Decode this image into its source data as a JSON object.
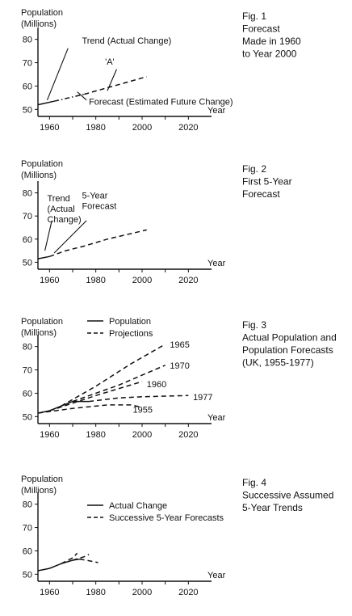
{
  "page": {
    "background": "#ffffff",
    "ink": "#111111"
  },
  "chart_data": [
    {
      "type": "line",
      "caption": "Fig. 1\nForecast\nMade in 1960\nto Year 2000",
      "ylabel": "Population\n(Millions)",
      "xlabel": "Year",
      "x_ticks": [
        1960,
        1980,
        2000,
        2020
      ],
      "y_ticks": [
        50,
        60,
        70,
        80
      ],
      "xlim": [
        1955,
        2030
      ],
      "ylim": [
        47,
        83
      ],
      "legend": [],
      "series": [
        {
          "style": "solid",
          "points": [
            [
              1955,
              52
            ],
            [
              1962,
              53.5
            ]
          ]
        },
        {
          "style": "dashdot",
          "points": [
            [
              1962,
              53.5
            ],
            [
              1975,
              56.5
            ]
          ]
        },
        {
          "style": "dashed",
          "points": [
            [
              1975,
              56.5
            ],
            [
              2002,
              64
            ]
          ]
        }
      ],
      "callouts": [
        {
          "text": "Trend (Actual Change)",
          "anchor": [
            1959,
            54
          ],
          "label_at": [
            1974,
            78.2
          ],
          "align": "start",
          "leader": [
            1968,
            76.2
          ]
        },
        {
          "text": "'A'",
          "anchor": [
            1985,
            58
          ],
          "label_at": [
            1984,
            69.2
          ],
          "align": "start",
          "leader": [
            1989,
            67.2
          ]
        },
        {
          "text": "Forecast (Estimated Future Change)",
          "anchor": [
            1972,
            57.5
          ],
          "label_at": [
            1977,
            52
          ],
          "align": "start",
          "leader": [
            1976,
            54
          ]
        }
      ],
      "end_labels": []
    },
    {
      "type": "line",
      "caption": "Fig. 2\nFirst 5-Year\nForecast",
      "ylabel": "Population\n(Millions)",
      "xlabel": "Year",
      "x_ticks": [
        1960,
        1980,
        2000,
        2020
      ],
      "y_ticks": [
        50,
        60,
        70,
        80
      ],
      "xlim": [
        1955,
        2030
      ],
      "ylim": [
        47,
        83
      ],
      "legend": [],
      "series": [
        {
          "style": "solid",
          "points": [
            [
              1955,
              51.5
            ],
            [
              1960,
              52.5
            ]
          ]
        },
        {
          "style": "dashed",
          "points": [
            [
              1960,
              52.5
            ],
            [
              1967,
              55
            ],
            [
              1975,
              57
            ],
            [
              1985,
              60
            ],
            [
              2002,
              64
            ]
          ]
        }
      ],
      "callouts": [
        {
          "text": "Trend\n(Actual\nChange)",
          "anchor": [
            1958,
            55
          ],
          "label_at": [
            1959,
            76.3
          ],
          "align": "start",
          "leader": [
            1961,
            68
          ]
        },
        {
          "text": "5-Year\nForecast",
          "anchor": [
            1962,
            54
          ],
          "label_at": [
            1974,
            77.5
          ],
          "align": "start",
          "leader": [
            1976,
            68
          ]
        }
      ],
      "end_labels": []
    },
    {
      "type": "line",
      "caption": "Fig. 3\nActual Population and\nPopulation Forecasts\n(UK, 1955-1977)",
      "ylabel": "Population\n(Millions)",
      "xlabel": "Year",
      "x_ticks": [
        1960,
        1980,
        2000,
        2020
      ],
      "y_ticks": [
        50,
        60,
        70,
        80
      ],
      "xlim": [
        1955,
        2030
      ],
      "ylim": [
        47,
        83
      ],
      "legend": [
        {
          "style": "solid",
          "label": "Population"
        },
        {
          "style": "dashed",
          "label": "Projections"
        }
      ],
      "series": [
        {
          "style": "solid",
          "points": [
            [
              1955,
              51.5
            ],
            [
              1960,
              52.5
            ],
            [
              1965,
              54.5
            ],
            [
              1970,
              56.5
            ],
            [
              1977,
              56.5
            ]
          ]
        },
        {
          "style": "dashed",
          "name": "1965",
          "points": [
            [
              1965,
              54.5
            ],
            [
              1980,
              63
            ],
            [
              1995,
              72.5
            ],
            [
              2010,
              81
            ]
          ]
        },
        {
          "style": "dashed",
          "name": "1970",
          "points": [
            [
              1970,
              56.5
            ],
            [
              1990,
              63.5
            ],
            [
              2010,
              72
            ]
          ]
        },
        {
          "style": "dashed",
          "name": "1960",
          "points": [
            [
              1960,
              52.5
            ],
            [
              1980,
              59
            ],
            [
              2000,
              65
            ]
          ]
        },
        {
          "style": "dashed",
          "name": "1977",
          "points": [
            [
              1977,
              56.5
            ],
            [
              1990,
              58
            ],
            [
              2000,
              58.5
            ],
            [
              2020,
              59
            ]
          ]
        },
        {
          "style": "dashed",
          "name": "1955",
          "points": [
            [
              1955,
              51.5
            ],
            [
              1970,
              53.5
            ],
            [
              1985,
              55
            ],
            [
              1995,
              55
            ],
            [
              2000,
              54
            ]
          ]
        }
      ],
      "callouts": [],
      "end_labels": [
        {
          "text": "1965",
          "at": [
            2012,
            81
          ]
        },
        {
          "text": "1970",
          "at": [
            2012,
            72
          ]
        },
        {
          "text": "1960",
          "at": [
            2002,
            64
          ]
        },
        {
          "text": "1977",
          "at": [
            2022,
            58.5
          ]
        },
        {
          "text": "1955",
          "at": [
            1996,
            53
          ]
        }
      ]
    },
    {
      "type": "line",
      "caption": "Fig. 4\nSuccessive Assumed\n5-Year Trends",
      "ylabel": "Population\n(Millions)",
      "xlabel": "Year",
      "x_ticks": [
        1960,
        1980,
        2000,
        2020
      ],
      "y_ticks": [
        50,
        60,
        70,
        80
      ],
      "xlim": [
        1955,
        2030
      ],
      "ylim": [
        47,
        83
      ],
      "legend": [
        {
          "style": "solid",
          "label": "Actual Change"
        },
        {
          "style": "dashed",
          "label": "Successive 5-Year Forecasts"
        }
      ],
      "series": [
        {
          "style": "solid",
          "points": [
            [
              1955,
              51.5
            ],
            [
              1960,
              52.5
            ],
            [
              1965,
              54.5
            ],
            [
              1970,
              56
            ],
            [
              1973,
              56.5
            ]
          ]
        },
        {
          "style": "dashed",
          "points": [
            [
              1965,
              54.5
            ],
            [
              1970,
              57
            ],
            [
              1972,
              59
            ]
          ]
        },
        {
          "style": "dashed",
          "points": [
            [
              1970,
              56
            ],
            [
              1975,
              57.5
            ],
            [
              1977,
              58.5
            ]
          ]
        },
        {
          "style": "dashed",
          "points": [
            [
              1973,
              56.5
            ],
            [
              1977,
              55.8
            ],
            [
              1981,
              55
            ]
          ]
        }
      ],
      "callouts": [],
      "end_labels": []
    }
  ]
}
